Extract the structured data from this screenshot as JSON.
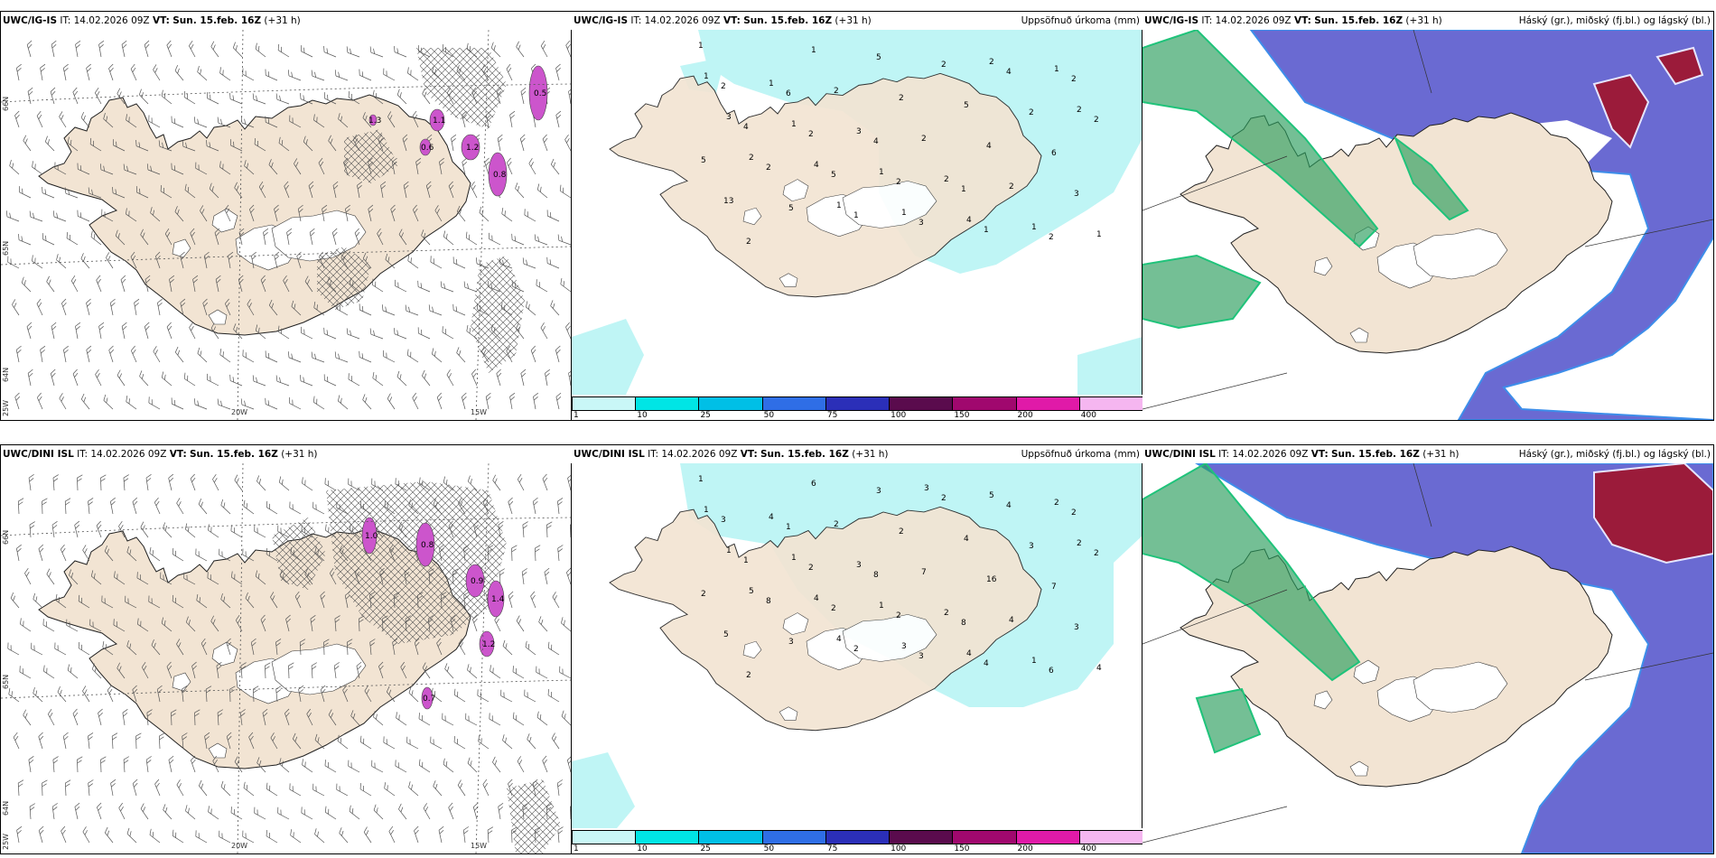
{
  "rows": [
    {
      "model": "UWC/IG-IS",
      "it_label": "IT:",
      "it": "14.02.2026 09Z",
      "vt_label": "VT:",
      "vt": "Sun. 15.feb. 16Z",
      "lead": "(+31 h)",
      "precip_title": "Uppsöfnuð úrkoma (mm)",
      "cloud_title": "Háský (gr.), miðský (fj.bl.) og lágský (bl.)",
      "lat_labels": [
        "66N",
        "65N",
        "64N"
      ],
      "lon_labels": [
        "25W",
        "20W",
        "15W"
      ],
      "wind_values": [
        "0.5",
        "1.2",
        "0.8",
        "1.1",
        "0.6",
        "1.3"
      ],
      "precip_numbers": [
        "1",
        "6",
        "4",
        "1",
        "2",
        "2",
        "2",
        "2",
        "1",
        "2",
        "4",
        "5",
        "3",
        "4",
        "2",
        "2",
        "1",
        "2",
        "2",
        "5",
        "5",
        "5",
        "5",
        "6",
        "13",
        "1",
        "2",
        "4",
        "3",
        "2",
        "2",
        "2",
        "2",
        "1",
        "1",
        "3",
        "2",
        "1",
        "1",
        "1",
        "1",
        "4",
        "1",
        "3",
        "4",
        "1",
        "2",
        "2",
        "2",
        "1"
      ]
    },
    {
      "model": "UWC/DINI ISL",
      "it_label": "IT:",
      "it": "14.02.2026 09Z",
      "vt_label": "VT:",
      "vt": "Sun. 15.feb. 16Z",
      "lead": "(+31 h)",
      "precip_title": "Uppsöfnuð úrkoma (mm)",
      "cloud_title": "Háský (gr.), miðský (fj.bl.) og lágský (bl.)",
      "lat_labels": [
        "66N",
        "65N",
        "64N"
      ],
      "lon_labels": [
        "25W",
        "20W",
        "15W"
      ],
      "wind_values": [
        "0.8",
        "1.0",
        "0.9",
        "1.4",
        "0.7",
        "1.2"
      ],
      "precip_numbers": [
        "1",
        "1",
        "8",
        "8",
        "6",
        "3",
        "2",
        "2",
        "4",
        "2",
        "1",
        "2",
        "3",
        "4",
        "2",
        "8",
        "2",
        "2",
        "3",
        "2",
        "3",
        "3",
        "4",
        "7",
        "5",
        "6",
        "2",
        "16",
        "3",
        "2",
        "2",
        "7",
        "4",
        "4",
        "4",
        "3",
        "2",
        "1",
        "1",
        "1",
        "1",
        "4",
        "2",
        "1",
        "4",
        "3",
        "5",
        "2",
        "5",
        "4",
        "3"
      ]
    }
  ],
  "colorbar": {
    "ticks": [
      "1",
      "10",
      "25",
      "50",
      "75",
      "100",
      "150",
      "200",
      "400"
    ],
    "colors": [
      "#c9f7f7",
      "#00e5e5",
      "#00bfe6",
      "#2f6ee6",
      "#2b2fb8",
      "#5a0b4d",
      "#a0086e",
      "#e01aa8",
      "#f5b6f0"
    ]
  },
  "colors": {
    "land": "#f2e4d3",
    "precip": "#bff5f5",
    "high_cloud": "#2a9d5c",
    "mid_cloud": "#4a4ab5",
    "low_cloud": "#6a6ad2",
    "heavy_cloud": "#9b1b3a",
    "snow_hatch": "#555555",
    "max_precip": "#cc55cc"
  }
}
